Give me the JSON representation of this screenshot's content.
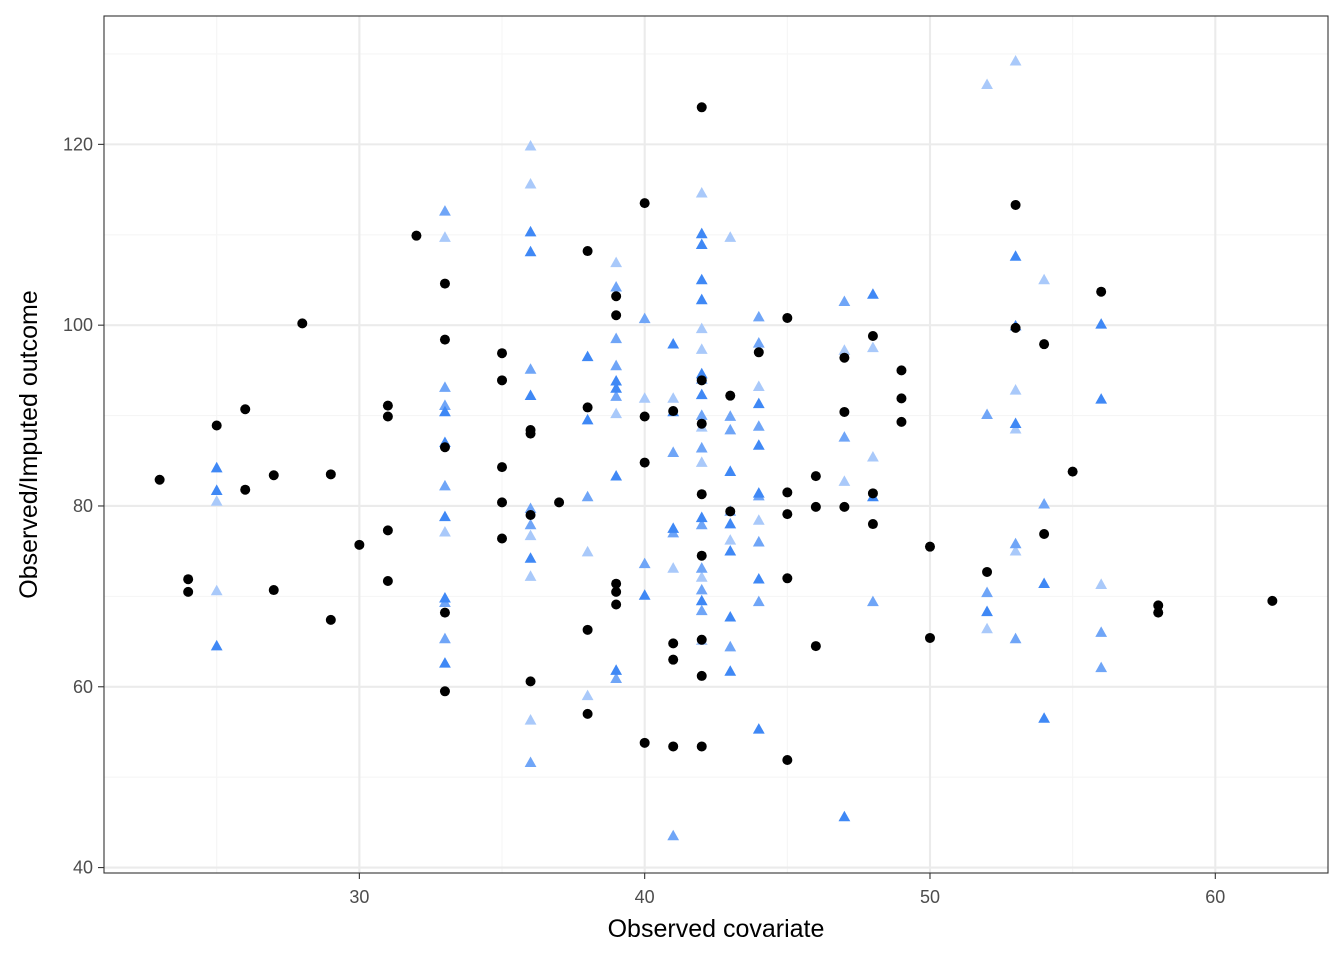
{
  "chart_data": {
    "type": "scatter",
    "title": "",
    "xlabel": "Observed covariate",
    "ylabel": "Observed/Imputed outcome",
    "xlim": [
      21.05,
      63.95
    ],
    "ylim": [
      39.4,
      134.2
    ],
    "x_ticks": [
      30,
      40,
      50,
      60
    ],
    "y_ticks": [
      40,
      60,
      80,
      100,
      120
    ],
    "x_tick_labels": [
      "30",
      "40",
      "50",
      "60"
    ],
    "y_tick_labels": [
      "40",
      "60",
      "80",
      "100",
      "120"
    ],
    "grid": true,
    "legend": "none",
    "colors": {
      "panel_border": "#333333",
      "grid_major": "#ebebeb",
      "grid_minor": "#f5f5f5",
      "observed": "#000000",
      "imputed_dark": "#3f88f5",
      "imputed_mid": "#6fa5f7",
      "imputed_light": "#a9c9fa"
    },
    "series": [
      {
        "marker": "circle",
        "color": "#000000",
        "points": [
          [
            23,
            82.9
          ],
          [
            24,
            71.9
          ],
          [
            24,
            70.5
          ],
          [
            25,
            88.9
          ],
          [
            26,
            90.7
          ],
          [
            26,
            81.8
          ],
          [
            27,
            83.4
          ],
          [
            27,
            70.7
          ],
          [
            28,
            100.2
          ],
          [
            29,
            83.5
          ],
          [
            29,
            67.4
          ],
          [
            30,
            75.7
          ],
          [
            31,
            91.1
          ],
          [
            31,
            89.9
          ],
          [
            31,
            77.3
          ],
          [
            31,
            71.7
          ],
          [
            32,
            109.9
          ],
          [
            33,
            104.6
          ],
          [
            33,
            98.4
          ],
          [
            33,
            86.5
          ],
          [
            33,
            68.2
          ],
          [
            33,
            59.5
          ],
          [
            35,
            96.9
          ],
          [
            35,
            93.9
          ],
          [
            35,
            84.3
          ],
          [
            35,
            80.4
          ],
          [
            35,
            76.4
          ],
          [
            36,
            88.4
          ],
          [
            36,
            88.0
          ],
          [
            36,
            79.0
          ],
          [
            36,
            60.6
          ],
          [
            37,
            80.4
          ],
          [
            38,
            108.2
          ],
          [
            38,
            90.9
          ],
          [
            38,
            66.3
          ],
          [
            38,
            57.0
          ],
          [
            39,
            103.2
          ],
          [
            39,
            101.1
          ],
          [
            39,
            71.4
          ],
          [
            39,
            70.5
          ],
          [
            39,
            69.1
          ],
          [
            40,
            113.5
          ],
          [
            40,
            89.9
          ],
          [
            40,
            84.8
          ],
          [
            40,
            53.8
          ],
          [
            41,
            90.5
          ],
          [
            41,
            64.8
          ],
          [
            41,
            63.0
          ],
          [
            41,
            53.4
          ],
          [
            42,
            124.1
          ],
          [
            42,
            93.9
          ],
          [
            42,
            89.1
          ],
          [
            42,
            81.3
          ],
          [
            42,
            74.5
          ],
          [
            42,
            65.2
          ],
          [
            42,
            61.2
          ],
          [
            42,
            53.4
          ],
          [
            43,
            92.2
          ],
          [
            43,
            79.4
          ],
          [
            44,
            97.0
          ],
          [
            45,
            100.8
          ],
          [
            45,
            81.5
          ],
          [
            45,
            79.1
          ],
          [
            45,
            72.0
          ],
          [
            45,
            51.9
          ],
          [
            46,
            83.3
          ],
          [
            46,
            79.9
          ],
          [
            46,
            64.5
          ],
          [
            47,
            96.4
          ],
          [
            47,
            90.4
          ],
          [
            47,
            79.9
          ],
          [
            48,
            98.8
          ],
          [
            48,
            81.4
          ],
          [
            48,
            78.0
          ],
          [
            49,
            95.0
          ],
          [
            49,
            91.9
          ],
          [
            49,
            89.3
          ],
          [
            50,
            75.5
          ],
          [
            50,
            65.4
          ],
          [
            52,
            72.7
          ],
          [
            53,
            113.3
          ],
          [
            53,
            99.7
          ],
          [
            54,
            97.9
          ],
          [
            54,
            76.9
          ],
          [
            55,
            83.8
          ],
          [
            56,
            103.7
          ],
          [
            58,
            69.0
          ],
          [
            58,
            68.2
          ],
          [
            62,
            69.5
          ]
        ]
      },
      {
        "marker": "triangle",
        "color": "#3f88f5",
        "points": [
          [
            25,
            84.2
          ],
          [
            25,
            81.7
          ],
          [
            25,
            64.5
          ],
          [
            33,
            90.4
          ],
          [
            33,
            69.8
          ],
          [
            33,
            62.6
          ],
          [
            33,
            78.8
          ],
          [
            33,
            87.0
          ],
          [
            36,
            110.3
          ],
          [
            36,
            108.1
          ],
          [
            36,
            92.2
          ],
          [
            36,
            74.2
          ],
          [
            38,
            96.5
          ],
          [
            38,
            89.5
          ],
          [
            39,
            93.8
          ],
          [
            39,
            93.0
          ],
          [
            39,
            83.3
          ],
          [
            39,
            61.8
          ],
          [
            40,
            70.1
          ],
          [
            41,
            97.9
          ],
          [
            41,
            90.4
          ],
          [
            41,
            77.5
          ],
          [
            42,
            110.1
          ],
          [
            42,
            108.9
          ],
          [
            42,
            105.0
          ],
          [
            42,
            102.8
          ],
          [
            42,
            94.6
          ],
          [
            42,
            92.3
          ],
          [
            42,
            78.7
          ],
          [
            42,
            69.5
          ],
          [
            43,
            83.8
          ],
          [
            43,
            78.0
          ],
          [
            43,
            75.0
          ],
          [
            43,
            67.7
          ],
          [
            43,
            61.7
          ],
          [
            44,
            91.3
          ],
          [
            44,
            86.7
          ],
          [
            44,
            81.4
          ],
          [
            44,
            71.9
          ],
          [
            44,
            55.3
          ],
          [
            47,
            45.6
          ],
          [
            48,
            103.4
          ],
          [
            48,
            81.0
          ],
          [
            52,
            68.3
          ],
          [
            53,
            107.6
          ],
          [
            53,
            99.9
          ],
          [
            53,
            89.1
          ],
          [
            54,
            71.4
          ],
          [
            54,
            56.5
          ],
          [
            56,
            100.1
          ],
          [
            56,
            91.8
          ]
        ]
      },
      {
        "marker": "triangle",
        "color": "#6fa5f7",
        "points": [
          [
            33,
            112.6
          ],
          [
            33,
            93.1
          ],
          [
            33,
            91.1
          ],
          [
            33,
            82.2
          ],
          [
            33,
            69.3
          ],
          [
            33,
            65.3
          ],
          [
            36,
            95.1
          ],
          [
            36,
            79.7
          ],
          [
            36,
            77.9
          ],
          [
            36,
            51.6
          ],
          [
            38,
            81.0
          ],
          [
            39,
            104.2
          ],
          [
            39,
            98.5
          ],
          [
            39,
            95.5
          ],
          [
            39,
            92.1
          ],
          [
            39,
            60.9
          ],
          [
            40,
            100.7
          ],
          [
            40,
            73.6
          ],
          [
            41,
            85.9
          ],
          [
            41,
            77.0
          ],
          [
            41,
            43.5
          ],
          [
            42,
            94.0
          ],
          [
            42,
            90.0
          ],
          [
            42,
            86.4
          ],
          [
            42,
            77.9
          ],
          [
            42,
            73.1
          ],
          [
            42,
            70.7
          ],
          [
            42,
            68.4
          ],
          [
            43,
            89.9
          ],
          [
            43,
            88.4
          ],
          [
            43,
            79.4
          ],
          [
            43,
            64.4
          ],
          [
            44,
            100.9
          ],
          [
            44,
            98.0
          ],
          [
            44,
            88.8
          ],
          [
            44,
            81.1
          ],
          [
            44,
            76.0
          ],
          [
            44,
            69.4
          ],
          [
            47,
            102.6
          ],
          [
            47,
            87.6
          ],
          [
            48,
            69.4
          ],
          [
            52,
            90.1
          ],
          [
            52,
            70.4
          ],
          [
            53,
            65.3
          ],
          [
            53,
            75.8
          ],
          [
            54,
            80.2
          ],
          [
            56,
            66.0
          ],
          [
            56,
            62.1
          ]
        ]
      },
      {
        "marker": "triangle",
        "color": "#a9c9fa",
        "points": [
          [
            25,
            80.5
          ],
          [
            25,
            70.6
          ],
          [
            33,
            109.7
          ],
          [
            33,
            77.1
          ],
          [
            36,
            119.8
          ],
          [
            36,
            115.6
          ],
          [
            36,
            76.7
          ],
          [
            36,
            72.2
          ],
          [
            36,
            56.3
          ],
          [
            38,
            74.9
          ],
          [
            38,
            59.0
          ],
          [
            39,
            106.9
          ],
          [
            39,
            90.2
          ],
          [
            40,
            91.9
          ],
          [
            41,
            91.9
          ],
          [
            41,
            73.1
          ],
          [
            42,
            114.6
          ],
          [
            42,
            99.6
          ],
          [
            42,
            97.3
          ],
          [
            42,
            88.7
          ],
          [
            42,
            84.8
          ],
          [
            42,
            72.1
          ],
          [
            42,
            65.1
          ],
          [
            43,
            109.7
          ],
          [
            43,
            76.2
          ],
          [
            44,
            93.2
          ],
          [
            44,
            78.4
          ],
          [
            47,
            97.2
          ],
          [
            47,
            82.7
          ],
          [
            48,
            97.5
          ],
          [
            48,
            85.4
          ],
          [
            52,
            126.6
          ],
          [
            52,
            66.4
          ],
          [
            53,
            129.2
          ],
          [
            53,
            92.8
          ],
          [
            53,
            88.5
          ],
          [
            53,
            75.0
          ],
          [
            54,
            105.0
          ],
          [
            56,
            71.3
          ]
        ]
      }
    ]
  }
}
